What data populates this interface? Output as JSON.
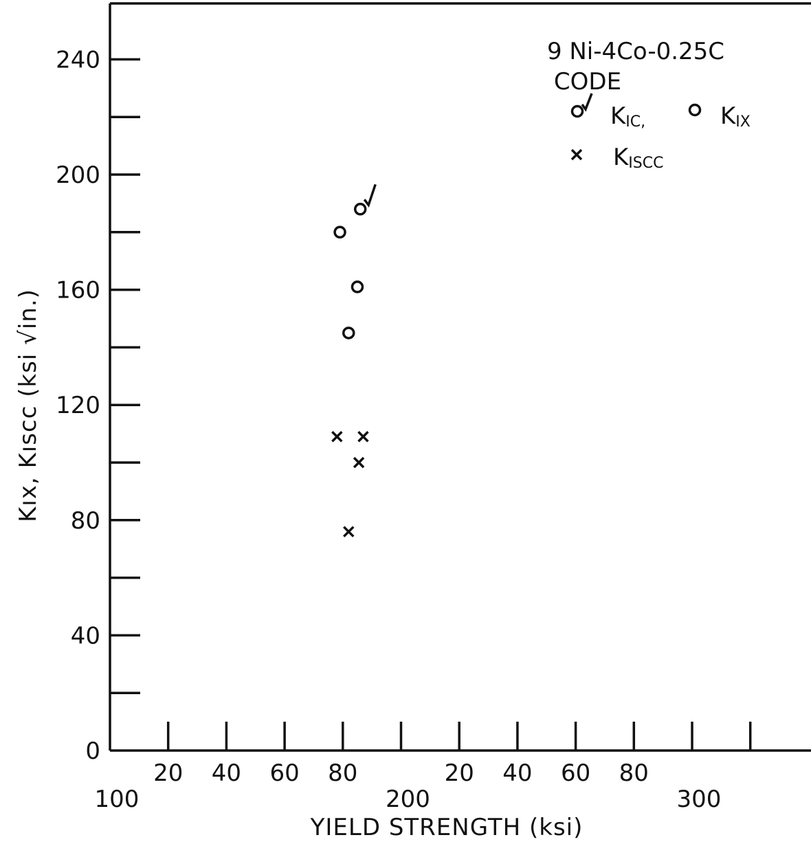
{
  "chart_data": {
    "type": "scatter",
    "title": "9 Ni-4Co-0.25C",
    "xlabel": "YIELD STRENGTH (ksi)",
    "ylabel": "Kıx, Kıscc (ksi √in.)",
    "xlim": [
      100,
      340
    ],
    "ylim": [
      0,
      260
    ],
    "grid": false,
    "legend_position": "top-right",
    "x_major_ticks": [
      {
        "value": 100,
        "label": "100"
      },
      {
        "value": 200,
        "label": "200"
      },
      {
        "value": 300,
        "label": "300"
      }
    ],
    "x_minor_ticks": [
      {
        "value": 120,
        "label": "20"
      },
      {
        "value": 140,
        "label": "40"
      },
      {
        "value": 160,
        "label": "60"
      },
      {
        "value": 180,
        "label": "80"
      },
      {
        "value": 220,
        "label": "20"
      },
      {
        "value": 240,
        "label": "40"
      },
      {
        "value": 260,
        "label": "60"
      },
      {
        "value": 280,
        "label": "80"
      }
    ],
    "x_unlabeled_ticks": [
      200,
      300,
      320
    ],
    "y_ticks": [
      {
        "value": 0,
        "label": "0"
      },
      {
        "value": 20,
        "label": ""
      },
      {
        "value": 40,
        "label": "40"
      },
      {
        "value": 60,
        "label": ""
      },
      {
        "value": 80,
        "label": "80"
      },
      {
        "value": 100,
        "label": ""
      },
      {
        "value": 120,
        "label": "120"
      },
      {
        "value": 140,
        "label": ""
      },
      {
        "value": 160,
        "label": "160"
      },
      {
        "value": 180,
        "label": ""
      },
      {
        "value": 200,
        "label": "200"
      },
      {
        "value": 220,
        "label": ""
      },
      {
        "value": 240,
        "label": "240"
      }
    ],
    "legend": {
      "heading": "CODE",
      "items": [
        {
          "marker": "circle-check",
          "label": "K",
          "sub": "IC,"
        },
        {
          "marker": "circle",
          "label": "K",
          "sub": "IX"
        },
        {
          "marker": "cross",
          "label": "K",
          "sub": "ISCC"
        }
      ]
    },
    "series": [
      {
        "marker": "circle",
        "points": [
          [
            179,
            180
          ],
          [
            185,
            161
          ],
          [
            182,
            145
          ]
        ]
      },
      {
        "marker": "circle-check",
        "points": [
          [
            186,
            188
          ]
        ]
      },
      {
        "marker": "cross",
        "points": [
          [
            178,
            109
          ],
          [
            187,
            109
          ],
          [
            185.5,
            100
          ],
          [
            182,
            76
          ]
        ]
      }
    ]
  }
}
